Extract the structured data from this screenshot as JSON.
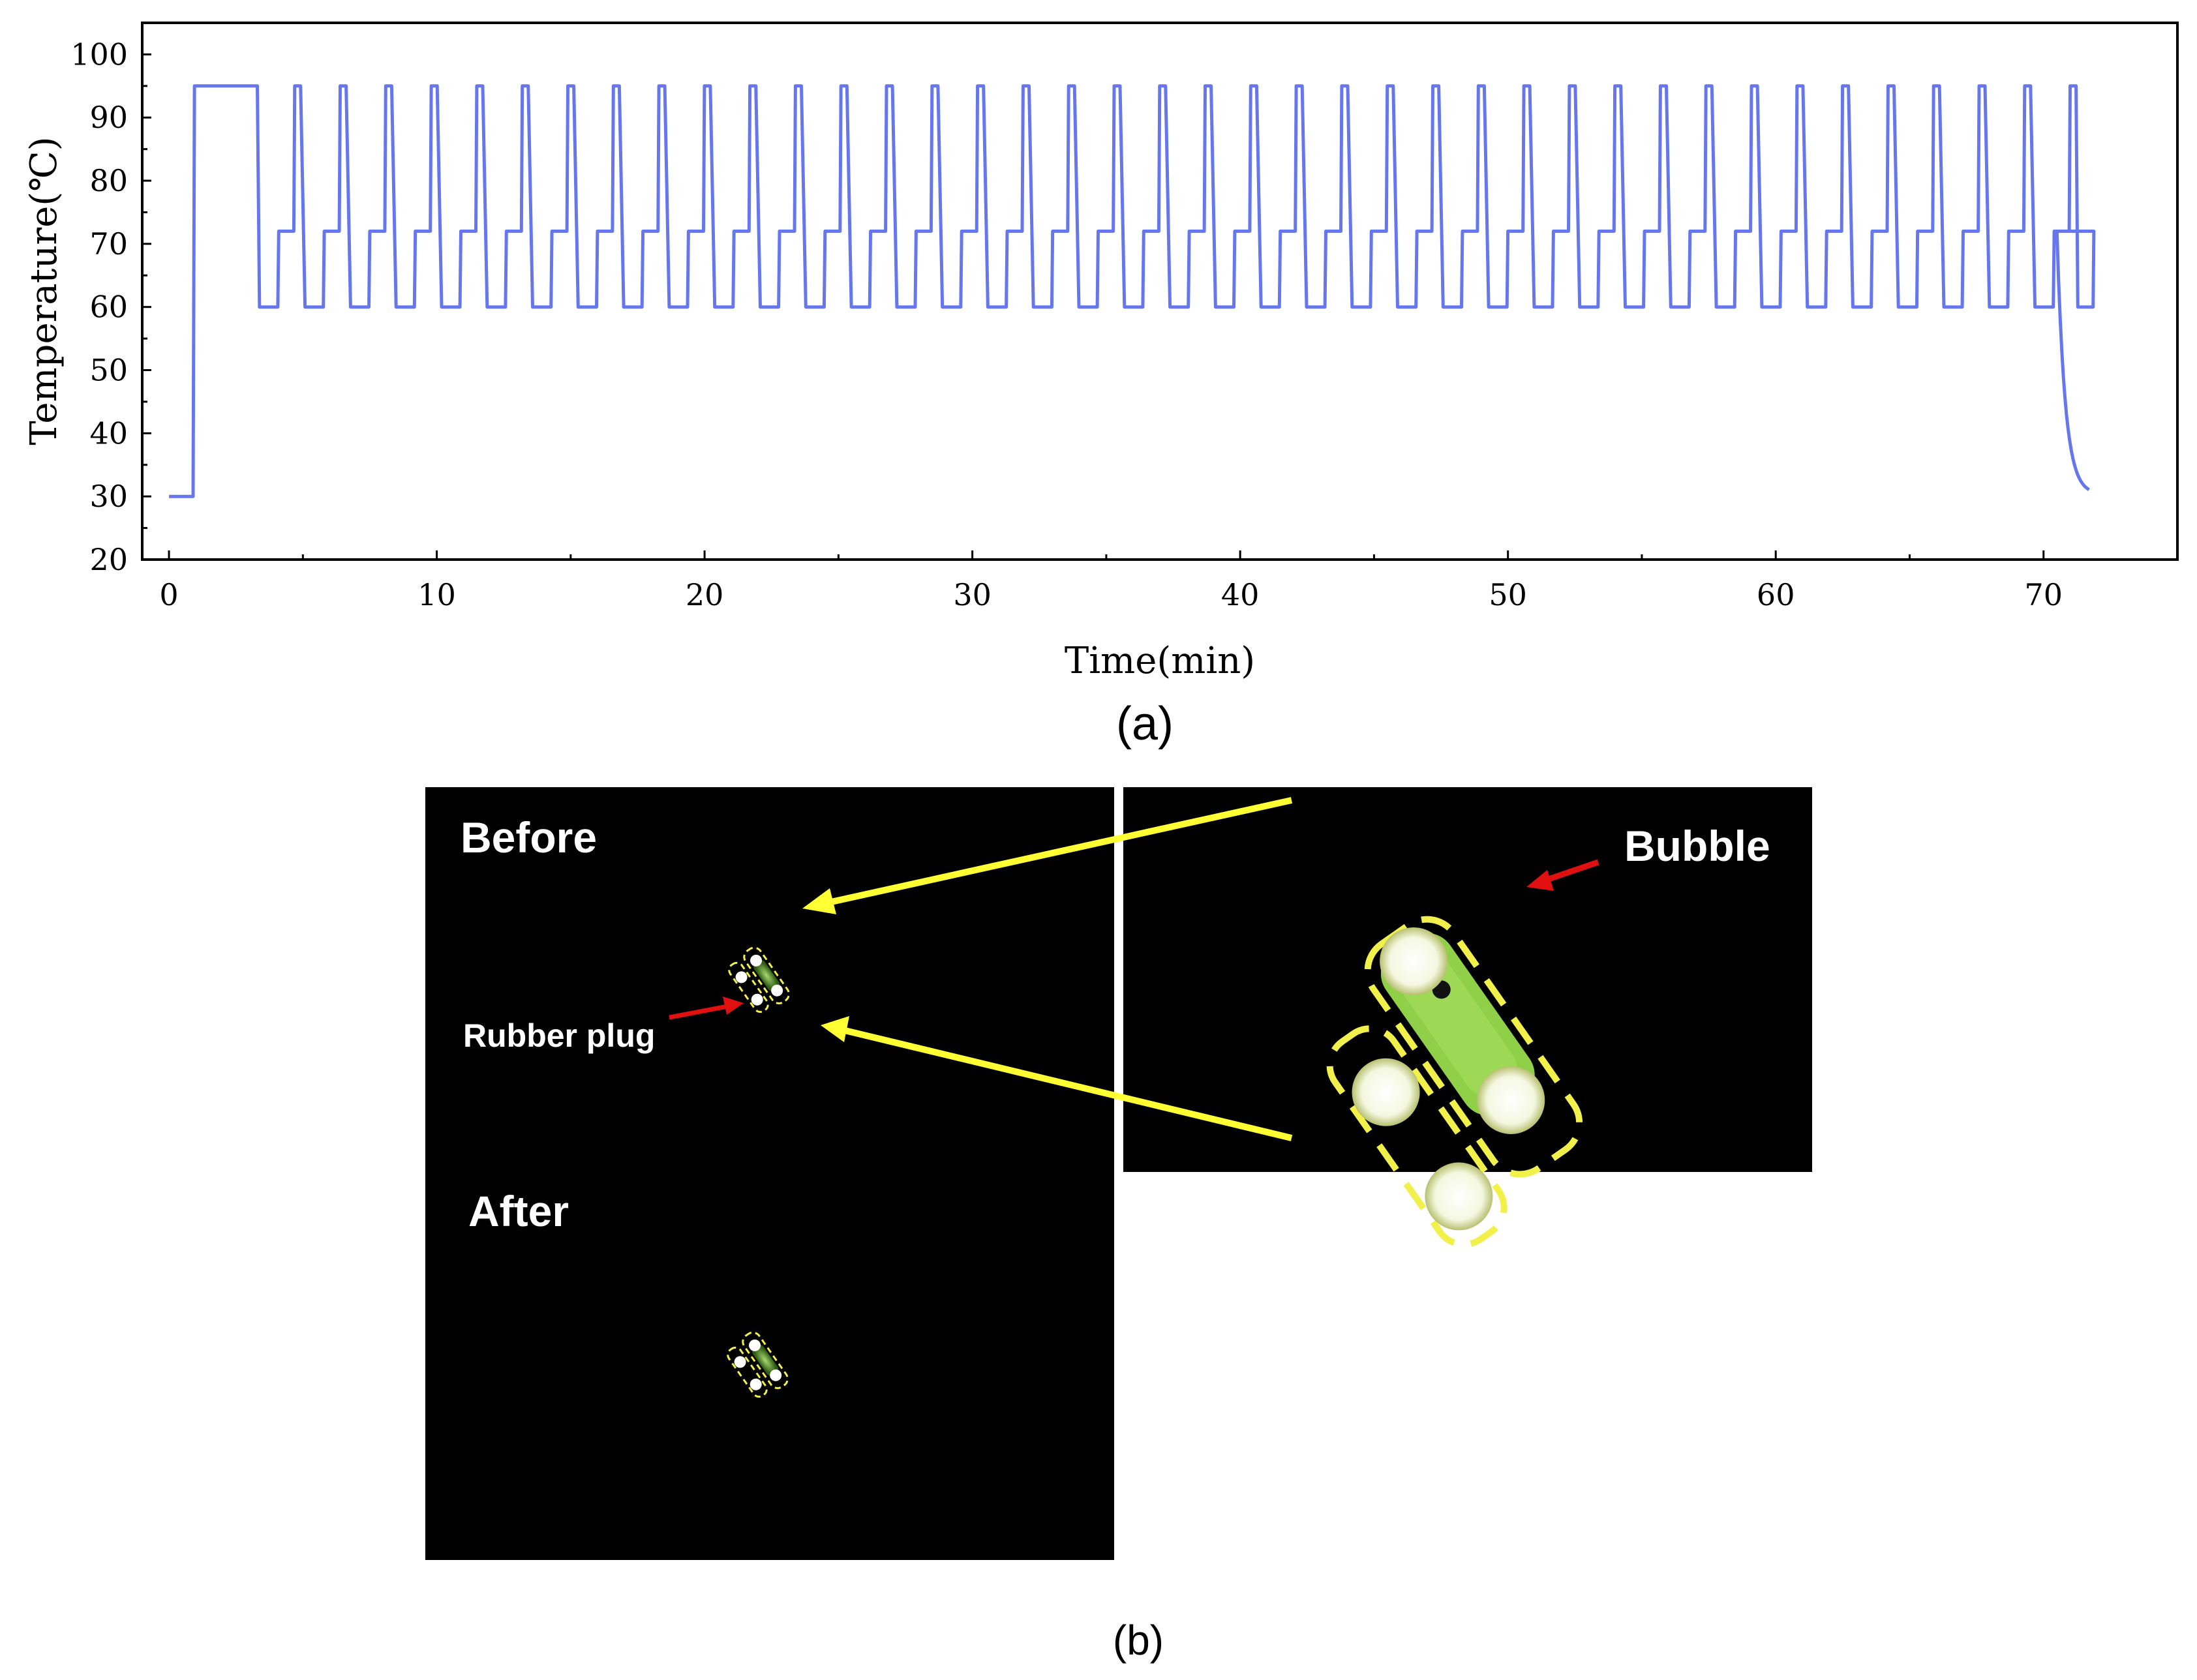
{
  "figure": {
    "caption_a": "(a)",
    "caption_b": "(b)"
  },
  "chart_data": {
    "type": "line",
    "xlabel": "Time(min)",
    "ylabel": "Temperature(℃)",
    "xlim": [
      -1,
      75
    ],
    "ylim": [
      20,
      105
    ],
    "xticks": [
      0,
      10,
      20,
      30,
      40,
      50,
      60,
      70
    ],
    "yticks": [
      20,
      30,
      40,
      50,
      60,
      70,
      80,
      90,
      100
    ],
    "line_color": "#6677ee",
    "grid": false,
    "legend": "none",
    "profile": {
      "initial_temp": 30,
      "initial_until_min": 0.9,
      "predenature_temp": 95,
      "predenature_until_min": 3.3,
      "cycles": 40,
      "cycle_period_min": 1.7,
      "denature_temp": 95,
      "anneal_temp": 60,
      "extend_temp": 72,
      "final_extend_temp": 72,
      "final_extend_until_min": 70.5,
      "end_temp": 30.3,
      "end_min": 71.7
    }
  },
  "panel_b": {
    "label_before": "Before",
    "label_after": "After",
    "label_rubber_plug": "Rubber plug",
    "label_bubble": "Bubble",
    "colors": {
      "background": "#000000",
      "arrow_yellow": "#ffff33",
      "arrow_red": "#e01010",
      "chip_green": "#7ac943",
      "dash_yellow": "#f2f04a",
      "well_white": "#ffffff"
    }
  }
}
